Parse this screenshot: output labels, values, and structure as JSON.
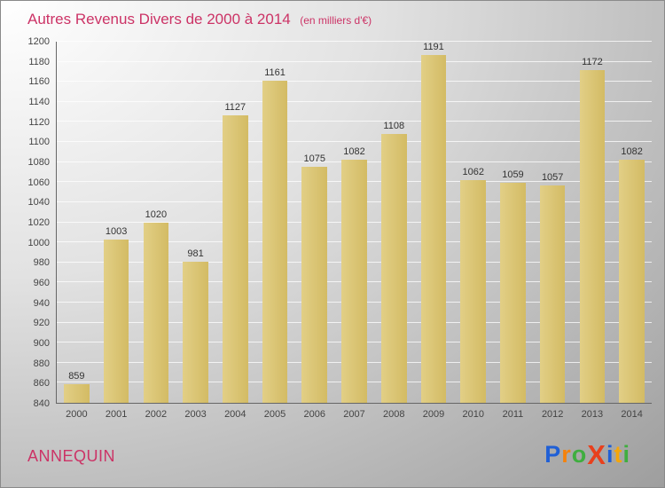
{
  "colors": {
    "accent": "#cc3366",
    "bar": "#d3bb64",
    "grid": "#ffffff",
    "axis_text": "#444444",
    "value_label": "#333333"
  },
  "header": {
    "title": "Autres Revenus Divers de 2000 à 2014",
    "subtitle": "(en milliers d'€)"
  },
  "chart_data": {
    "type": "bar",
    "title": "Autres Revenus Divers de 2000 à 2014",
    "subtitle": "(en milliers d'€)",
    "categories": [
      "2000",
      "2001",
      "2002",
      "2003",
      "2004",
      "2005",
      "2006",
      "2007",
      "2008",
      "2009",
      "2010",
      "2011",
      "2012",
      "2013",
      "2014"
    ],
    "values": [
      859,
      1003,
      1020,
      981,
      1127,
      1161,
      1075,
      1082,
      1108,
      1191,
      1062,
      1059,
      1057,
      1172,
      1082
    ],
    "xlabel": "",
    "ylabel": "",
    "ylim": [
      840,
      1200
    ],
    "ytick_step": 20,
    "grid": true,
    "legend": "none",
    "bar_color": "#d3bb64"
  },
  "footer": {
    "location": "ANNEQUIN",
    "logo": {
      "name": "Proxiti",
      "letters": [
        {
          "ch": "P",
          "color": "#1f5fd6",
          "big": false
        },
        {
          "ch": "r",
          "color": "#f5820b",
          "big": false
        },
        {
          "ch": "o",
          "color": "#3fae3f",
          "big": false
        },
        {
          "ch": "X",
          "color": "#e8401c",
          "big": true
        },
        {
          "ch": "i",
          "color": "#1f5fd6",
          "big": false
        },
        {
          "ch": "t",
          "color": "#f5a60b",
          "big": false
        },
        {
          "ch": "i",
          "color": "#3fae3f",
          "big": false
        }
      ]
    }
  }
}
